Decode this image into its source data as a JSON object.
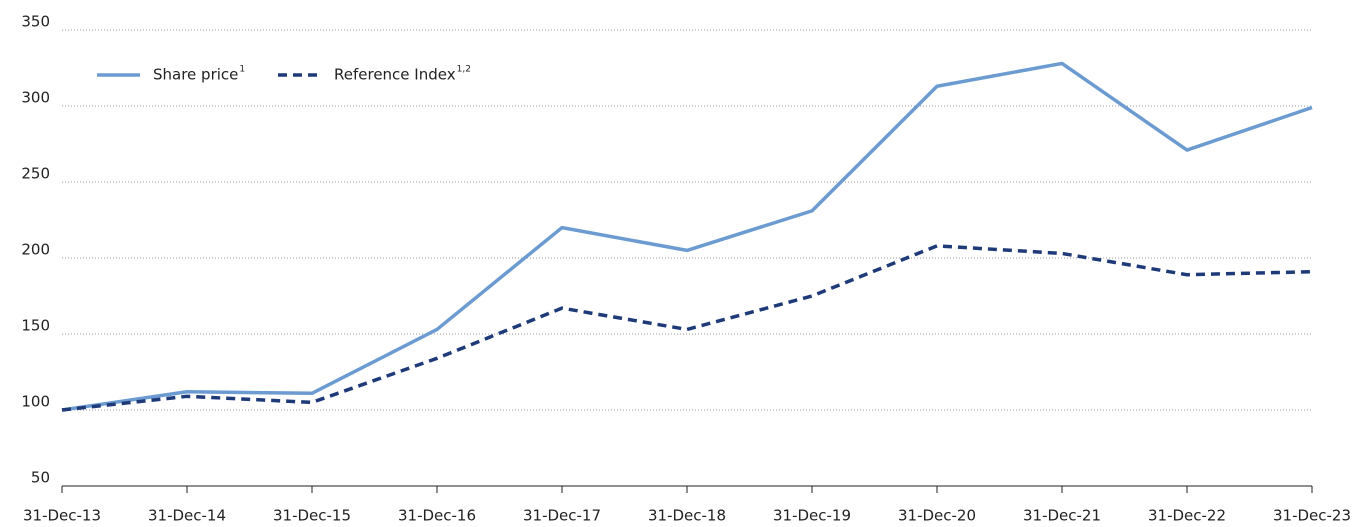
{
  "chart_data": {
    "type": "line",
    "categories": [
      "31-Dec-13",
      "31-Dec-14",
      "31-Dec-15",
      "31-Dec-16",
      "31-Dec-17",
      "31-Dec-18",
      "31-Dec-19",
      "31-Dec-20",
      "31-Dec-21",
      "31-Dec-22",
      "31-Dec-23"
    ],
    "series": [
      {
        "name": "Share price",
        "superscript": "1",
        "color": "#6b9bd1",
        "dashed": false,
        "values": [
          100,
          112,
          111,
          153,
          220,
          205,
          231,
          313,
          328,
          271,
          299
        ]
      },
      {
        "name": "Reference Index",
        "superscript": "1,2",
        "color": "#1f3a78",
        "dashed": true,
        "values": [
          100,
          109,
          105,
          134,
          167,
          153,
          175,
          208,
          203,
          189,
          191
        ]
      }
    ],
    "ylim": [
      50,
      350
    ],
    "yticks": [
      50,
      100,
      150,
      200,
      250,
      300,
      350
    ],
    "grid": true,
    "legend": "top-left"
  }
}
